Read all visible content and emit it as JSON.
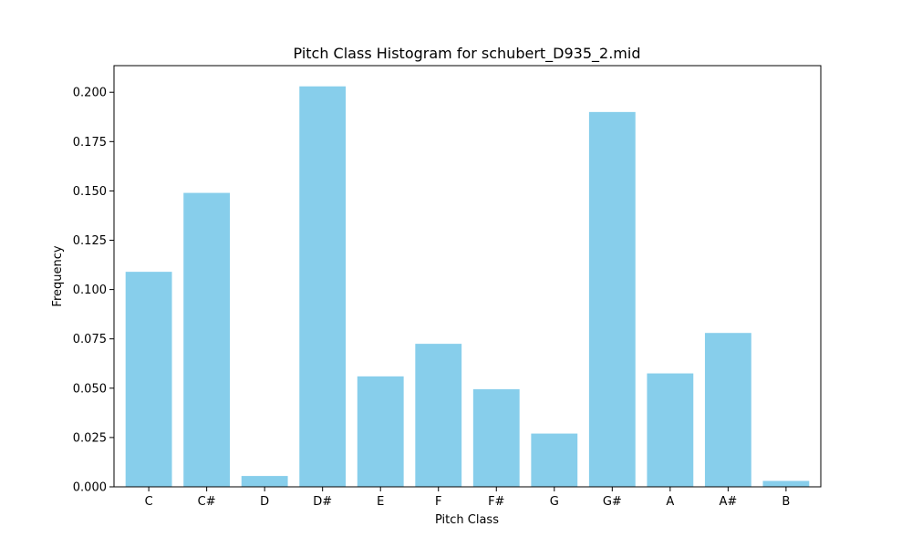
{
  "chart_data": {
    "type": "bar",
    "title": "Pitch Class Histogram for schubert_D935_2.mid",
    "xlabel": "Pitch Class",
    "ylabel": "Frequency",
    "categories": [
      "C",
      "C#",
      "D",
      "D#",
      "E",
      "F",
      "F#",
      "G",
      "G#",
      "A",
      "A#",
      "B"
    ],
    "values": [
      0.109,
      0.149,
      0.0055,
      0.203,
      0.056,
      0.0725,
      0.0495,
      0.027,
      0.19,
      0.0575,
      0.078,
      0.003
    ],
    "ylim": [
      0,
      0.2135
    ],
    "yticks": [
      0.0,
      0.025,
      0.05,
      0.075,
      0.1,
      0.125,
      0.15,
      0.175,
      0.2
    ],
    "ytick_labels": [
      "0.000",
      "0.025",
      "0.050",
      "0.075",
      "0.100",
      "0.125",
      "0.150",
      "0.175",
      "0.200"
    ],
    "bar_color": "#87ceeb",
    "grid": false,
    "legend": "none"
  }
}
